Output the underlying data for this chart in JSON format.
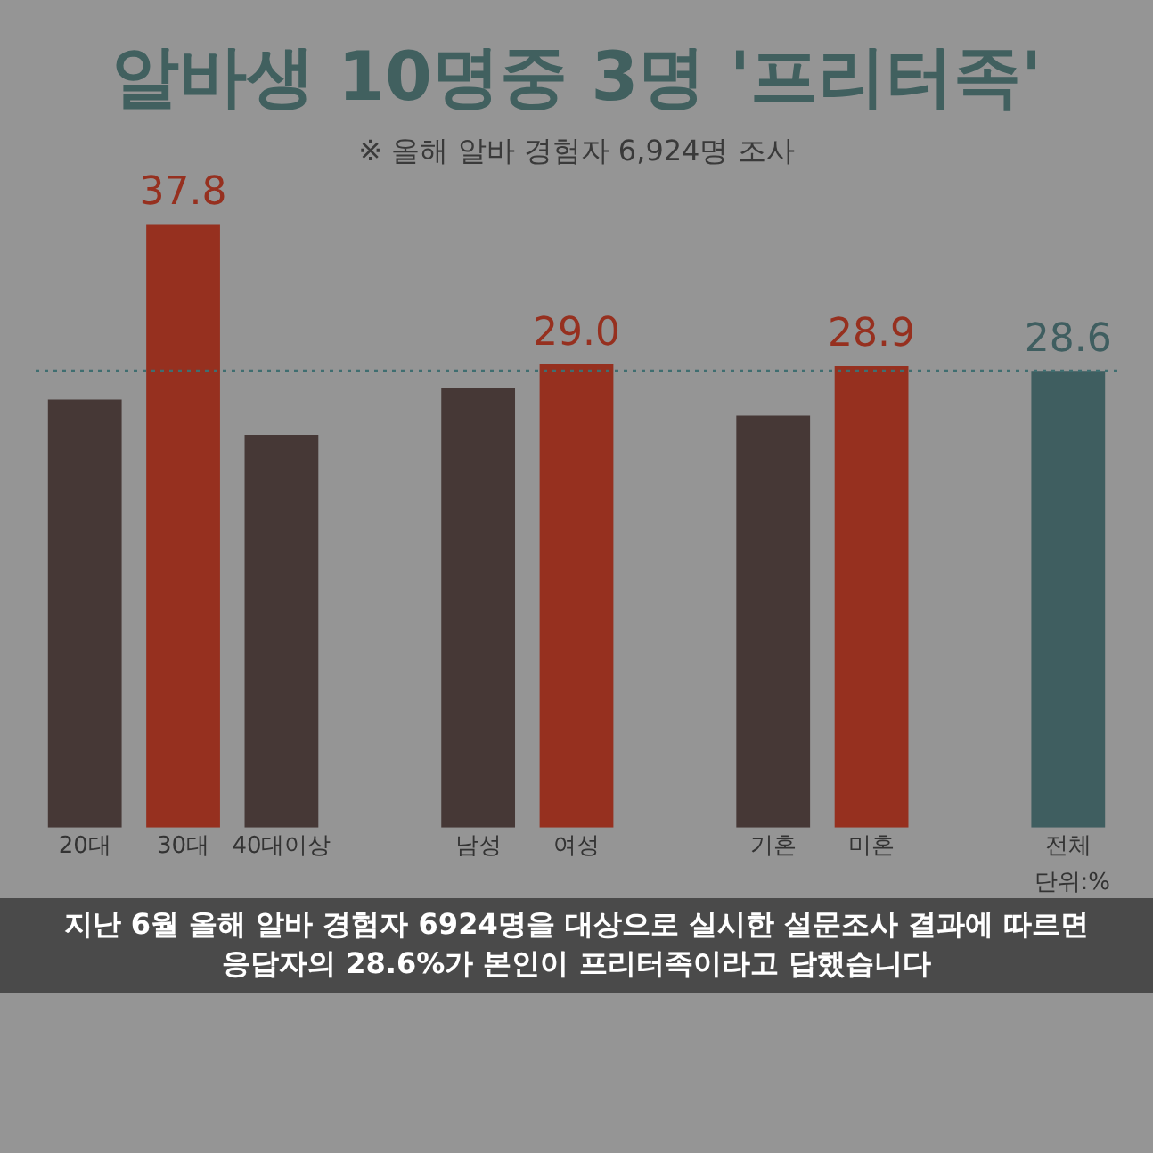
{
  "chart_data": {
    "type": "bar",
    "title": "알바생 10명중 3명 '프리터족'",
    "subtitle": "※ 올해 알바 경험자 6,924명 조사",
    "categories": [
      "20대",
      "30대",
      "40대이상",
      null,
      "남성",
      "여성",
      null,
      "기혼",
      "미혼",
      null,
      "전체"
    ],
    "values": [
      26.8,
      37.8,
      24.6,
      null,
      27.5,
      29.0,
      null,
      25.8,
      28.9,
      null,
      28.6
    ],
    "colors": [
      "#463836",
      "#96301f",
      "#463836",
      "#463836",
      "#463836",
      "#96301f",
      "#463836",
      "#463836",
      "#96301f",
      "#463836",
      "#3f5e60"
    ],
    "value_labels": [
      null,
      "37.8",
      null,
      null,
      null,
      "29.0",
      null,
      null,
      "28.9",
      null,
      "28.6"
    ],
    "tick_labels": "x",
    "grid": false,
    "legend": false,
    "ref_lines": [
      {
        "axis": "y",
        "value": 28.6,
        "color": "#3f6e70",
        "line_style": "dotted"
      }
    ],
    "annotations": [
      "단위:%",
      "지난 6월 올해 알바 경험자 6924명을 대상으로 실시한 설문조사 결과에 따르면 응답자의 28.6%가 본인이 프리터족이라고 답했습니다"
    ]
  }
}
